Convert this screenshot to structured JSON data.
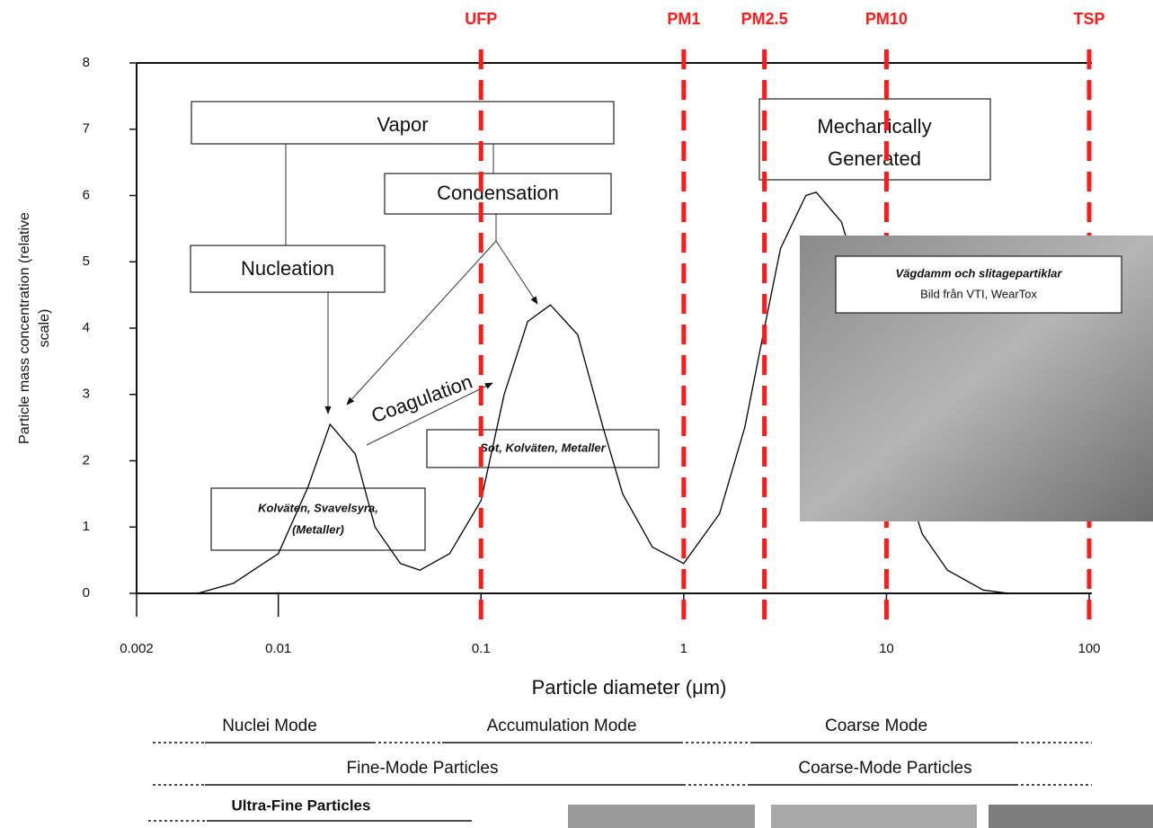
{
  "chart_data": {
    "type": "line",
    "xlabel": "Particle diameter (μm)",
    "ylabel": [
      "Particle mass concentration (relative",
      "scale)"
    ],
    "log_x": true,
    "xlim": [
      0.002,
      100
    ],
    "xticks": [
      0.002,
      0.01,
      0.1,
      1,
      10,
      100
    ],
    "ylim": [
      0,
      8
    ],
    "yticks": [
      0,
      1,
      2,
      3,
      4,
      5,
      6,
      7,
      8
    ],
    "color": "#000000",
    "x": [
      0.004,
      0.006,
      0.01,
      0.014,
      0.018,
      0.024,
      0.03,
      0.04,
      0.05,
      0.07,
      0.1,
      0.13,
      0.17,
      0.22,
      0.3,
      0.4,
      0.5,
      0.7,
      1,
      1.5,
      2,
      2.5,
      3,
      4,
      4.5,
      6,
      8,
      10,
      15,
      20,
      30,
      40
    ],
    "values": [
      0,
      0.15,
      0.6,
      1.6,
      2.55,
      2.1,
      1.0,
      0.45,
      0.35,
      0.6,
      1.4,
      3.0,
      4.1,
      4.35,
      3.9,
      2.5,
      1.5,
      0.7,
      0.45,
      1.2,
      2.5,
      4.0,
      5.2,
      6.0,
      6.05,
      5.6,
      4.3,
      2.6,
      0.9,
      0.35,
      0.05,
      0
    ],
    "ref_lines": {
      "color": "#ff1a1a",
      "items": [
        {
          "label": "UFP",
          "x": 0.1
        },
        {
          "label": "PM1",
          "x": 1
        },
        {
          "label": "PM2.5",
          "x": 2.5
        },
        {
          "label": "PM10",
          "x": 10
        },
        {
          "label": "TSP",
          "x": 100
        }
      ]
    },
    "annotations": {
      "vapor": "Vapor",
      "condensation": "Condensation",
      "nucleation": "Nucleation",
      "coagulation": "Coagulation",
      "mechanical": [
        "Mechanically",
        "Generated"
      ],
      "organics": [
        "Kolväten, Svavelsyra,",
        "(Metaller)"
      ],
      "soot": "Sot, Kolväten, Metaller",
      "photo": [
        "Vägdamm och slitagepartiklar",
        "Bild från VTI, WearTox"
      ],
      "modes": [
        "Nuclei Mode",
        "Accumulation Mode",
        "Coarse Mode"
      ],
      "particles": [
        "Fine-Mode Particles",
        "Coarse-Mode Particles"
      ],
      "ultrafine": "Ultra-Fine Particles"
    }
  }
}
